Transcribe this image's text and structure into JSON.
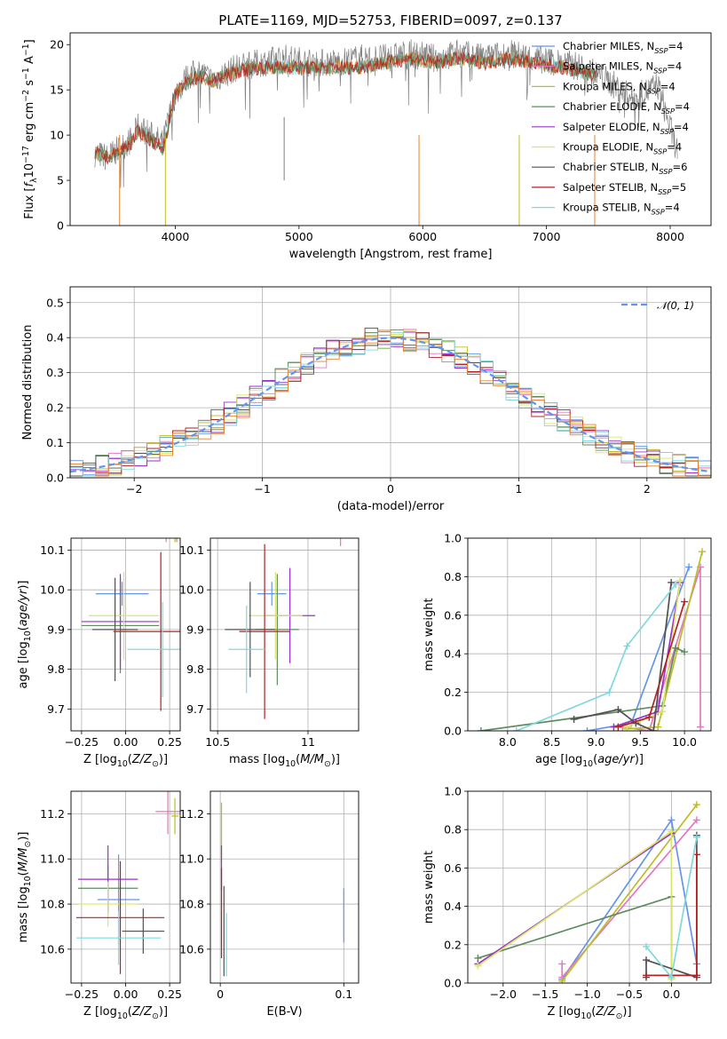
{
  "figure_title": "PLATE=1169, MJD=52753, FIBERID=0097, z=0.137",
  "colors": {
    "Chabrier MILES": "#6495ed",
    "Salpeter MILES": "#e377c2",
    "Kroupa MILES": "#bcbd22",
    "Chabrier ELODIE": "#5f8b5f",
    "Salpeter ELODIE": "#9932cc",
    "Kroupa ELODIE": "#dbe56a",
    "Chabrier STELIB": "#505050",
    "Salpeter STELIB": "#b22222",
    "Kroupa STELIB": "#80d8de",
    "data": "#808080",
    "orange": "#e8822a",
    "gaussian": "#6495ed"
  },
  "chart_data": [
    {
      "id": "spectrum",
      "type": "line",
      "xlabel": "wavelength [Angstrom, rest frame]",
      "ylabel": "Flux [f_λ10^-17 erg cm^-2 s^-1 A^-1]",
      "xlim": [
        3150,
        8330
      ],
      "ylim": [
        0,
        21.3
      ],
      "xticks": [
        4000,
        5000,
        6000,
        7000,
        8000
      ],
      "yticks": [
        0,
        5,
        10,
        15,
        20
      ],
      "grid": false,
      "legend_position": "right",
      "legend": [
        "Chabrier MILES, N_SSP=4",
        "Salpeter MILES, N_SSP=4",
        "Kroupa MILES, N_SSP=4",
        "Chabrier ELODIE, N_SSP=4",
        "Salpeter ELODIE, N_SSP=4",
        "Kroupa ELODIE, N_SSP=4",
        "Chabrier STELIB, N_SSP=6",
        "Salpeter STELIB, N_SSP=5",
        "Kroupa STELIB, N_SSP=4"
      ],
      "series": [
        {
          "name": "data",
          "x": [
            3350,
            3450,
            3550,
            3650,
            3700,
            3800,
            3900,
            3950,
            4000,
            4100,
            4200,
            4300,
            4500,
            4700,
            4900,
            5100,
            5300,
            5500,
            5700,
            5900,
            6100,
            6300,
            6500,
            6700,
            6900,
            7100,
            7300,
            7500,
            7700,
            7900,
            8050
          ],
          "y": [
            8.0,
            7.5,
            8.5,
            9.5,
            11.0,
            10.0,
            9.0,
            12.0,
            14.5,
            16.5,
            17.0,
            16.0,
            17.5,
            18.0,
            18.5,
            18.0,
            18.0,
            18.5,
            18.5,
            19.0,
            18.5,
            19.0,
            18.5,
            19.0,
            18.5,
            18.0,
            17.5,
            16.0,
            14.0,
            15.5,
            8.5
          ]
        },
        {
          "name": "model",
          "x": [
            3350,
            3450,
            3550,
            3650,
            3700,
            3800,
            3900,
            3950,
            4000,
            4100,
            4200,
            4300,
            4500,
            4700,
            4900,
            5100,
            5300,
            5500,
            5700,
            5900,
            6100,
            6300,
            6500,
            6700,
            6900,
            7100,
            7300,
            7400
          ],
          "y": [
            8.0,
            7.5,
            8.2,
            9.2,
            10.5,
            9.5,
            8.5,
            11.5,
            14.5,
            16.0,
            16.5,
            16.0,
            17.0,
            17.5,
            17.5,
            17.5,
            17.5,
            17.5,
            18.0,
            18.5,
            18.0,
            18.5,
            18.0,
            18.5,
            18.0,
            17.5,
            17.0,
            16.5
          ]
        }
      ]
    },
    {
      "id": "normed_distribution",
      "type": "line",
      "xlabel": "(data-model)/error",
      "ylabel": "Normed distribution",
      "xlim": [
        -2.5,
        2.5
      ],
      "ylim": [
        0,
        0.545
      ],
      "xticks": [
        -2,
        -1,
        0,
        1,
        2
      ],
      "yticks": [
        0.0,
        0.1,
        0.2,
        0.3,
        0.4,
        0.5
      ],
      "grid": true,
      "legend_position": "top-right",
      "legend": [
        "𝒩(0, 1)"
      ]
    },
    {
      "id": "age_vs_Z",
      "type": "scatter",
      "xlabel": "Z [log10(Z/Z⊙)]",
      "ylabel": "age  [log10(age/yr)]",
      "xlim": [
        -0.31,
        0.31
      ],
      "ylim": [
        9.645,
        10.13
      ],
      "xticks": [
        -0.25,
        0.0,
        0.25
      ],
      "yticks": [
        9.7,
        9.8,
        9.9,
        10.0,
        10.1
      ],
      "grid": true,
      "points": [
        {
          "series": "Chabrier MILES",
          "x": -0.02,
          "y": 9.99,
          "xerr": 0.15,
          "yerr": 0.03
        },
        {
          "series": "Salpeter MILES",
          "x": 0.23,
          "y": 10.14,
          "xerr": 0.07,
          "yerr": 0.02
        },
        {
          "series": "Kroupa MILES",
          "x": 0.28,
          "y": 10.15,
          "xerr": 0.01,
          "yerr": 0.03
        },
        {
          "series": "Chabrier ELODIE",
          "x": -0.03,
          "y": 9.91,
          "xerr": 0.22,
          "yerr": 0.12
        },
        {
          "series": "Salpeter ELODIE",
          "x": -0.03,
          "y": 9.92,
          "xerr": 0.22,
          "yerr": 0.12
        },
        {
          "series": "Kroupa ELODIE",
          "x": -0.01,
          "y": 9.935,
          "xerr": 0.2,
          "yerr": 0.11
        },
        {
          "series": "Chabrier STELIB",
          "x": -0.06,
          "y": 9.9,
          "xerr": 0.13,
          "yerr": 0.13
        },
        {
          "series": "Salpeter STELIB",
          "x": 0.2,
          "y": 9.895,
          "xerr": 0.27,
          "yerr": 0.2
        },
        {
          "series": "Kroupa STELIB",
          "x": 0.21,
          "y": 9.85,
          "xerr": 0.2,
          "yerr": 0.12
        },
        {
          "series": "orange",
          "x": 0.29,
          "y": 10.14,
          "xerr": 0.02,
          "yerr": 0.02
        }
      ]
    },
    {
      "id": "age_vs_mass",
      "type": "scatter",
      "xlabel": "mass [log10(M/M⊙)]",
      "ylabel": "",
      "xlim": [
        10.46,
        11.28
      ],
      "ylim": [
        9.645,
        10.13
      ],
      "xticks": [
        10.5,
        11.0
      ],
      "yticks": [
        9.7,
        9.8,
        9.9,
        10.0,
        10.1
      ],
      "grid": true,
      "points": [
        {
          "series": "Chabrier MILES",
          "x": 10.8,
          "y": 9.99,
          "xerr": 0.08,
          "yerr": 0.03
        },
        {
          "series": "Salpeter MILES",
          "x": 11.18,
          "y": 10.14,
          "xerr": 0.1,
          "yerr": 0.03
        },
        {
          "series": "Kroupa MILES",
          "x": 11.18,
          "y": 10.15,
          "xerr": 0.04,
          "yerr": 0.02
        },
        {
          "series": "Chabrier ELODIE",
          "x": 10.83,
          "y": 9.9,
          "xerr": 0.12,
          "yerr": 0.14
        },
        {
          "series": "Salpeter ELODIE",
          "x": 10.9,
          "y": 9.935,
          "xerr": 0.14,
          "yerr": 0.12
        },
        {
          "series": "Kroupa ELODIE",
          "x": 10.82,
          "y": 9.935,
          "xerr": 0.15,
          "yerr": 0.11
        },
        {
          "series": "Chabrier STELIB",
          "x": 10.68,
          "y": 9.9,
          "xerr": 0.14,
          "yerr": 0.12
        },
        {
          "series": "Salpeter STELIB",
          "x": 10.76,
          "y": 9.895,
          "xerr": 0.14,
          "yerr": 0.22
        },
        {
          "series": "Kroupa STELIB",
          "x": 10.66,
          "y": 9.85,
          "xerr": 0.1,
          "yerr": 0.11
        }
      ]
    },
    {
      "id": "mass_weight_vs_age",
      "type": "line",
      "xlabel": "age  [log10(age/yr)]",
      "ylabel": "mass weight",
      "xlim": [
        7.55,
        10.3
      ],
      "ylim": [
        0,
        1.0
      ],
      "xticks": [
        8.0,
        8.5,
        9.0,
        9.5,
        10.0
      ],
      "yticks": [
        0.0,
        0.2,
        0.4,
        0.6,
        0.8,
        1.0
      ],
      "grid": true,
      "series": [
        {
          "name": "Chabrier MILES",
          "x": [
            8.9,
            9.4,
            10.05
          ],
          "y": [
            0.0,
            0.04,
            0.85
          ]
        },
        {
          "name": "Salpeter MILES",
          "x": [
            9.3,
            9.6,
            10.18,
            10.18
          ],
          "y": [
            0.02,
            0.0,
            0.85,
            0.02
          ]
        },
        {
          "name": "Kroupa MILES",
          "x": [
            9.35,
            9.7,
            10.2
          ],
          "y": [
            0.01,
            0.02,
            0.93
          ]
        },
        {
          "name": "Chabrier ELODIE",
          "x": [
            7.7,
            9.75,
            9.9,
            10.0
          ],
          "y": [
            0.0,
            0.13,
            0.43,
            0.41
          ]
        },
        {
          "name": "Salpeter ELODIE",
          "x": [
            9.2,
            9.7,
            9.95
          ],
          "y": [
            0.02,
            0.1,
            0.77
          ]
        },
        {
          "name": "Kroupa ELODIE",
          "x": [
            9.35,
            9.75,
            9.95
          ],
          "y": [
            0.02,
            0.1,
            0.78
          ]
        },
        {
          "name": "Chabrier STELIB",
          "x": [
            8.75,
            9.25,
            9.45,
            9.65,
            9.85
          ],
          "y": [
            0.06,
            0.11,
            0.04,
            0.0,
            0.77
          ]
        },
        {
          "name": "Salpeter STELIB",
          "x": [
            9.25,
            9.6,
            10.0
          ],
          "y": [
            0.02,
            0.07,
            0.67
          ]
        },
        {
          "name": "Kroupa STELIB",
          "x": [
            8.1,
            9.15,
            9.35,
            9.9
          ],
          "y": [
            0.0,
            0.2,
            0.44,
            0.76
          ]
        }
      ]
    },
    {
      "id": "mass_vs_Z",
      "type": "scatter",
      "xlabel": "Z [log10(Z/Z⊙)]",
      "ylabel": "mass [log10(M/M⊙)]",
      "xlim": [
        -0.31,
        0.31
      ],
      "ylim": [
        10.45,
        11.3
      ],
      "xticks": [
        -0.25,
        0.0,
        0.25
      ],
      "yticks": [
        10.6,
        10.8,
        11.0,
        11.2
      ],
      "grid": true,
      "points": [
        {
          "series": "Chabrier MILES",
          "x": -0.04,
          "y": 10.82,
          "xerr": 0.12,
          "yerr": 0.2
        },
        {
          "series": "Salpeter MILES",
          "x": 0.24,
          "y": 11.21,
          "xerr": 0.07,
          "yerr": 0.1
        },
        {
          "series": "Kroupa MILES",
          "x": 0.28,
          "y": 11.19,
          "xerr": 0.02,
          "yerr": 0.08
        },
        {
          "series": "Chabrier ELODIE",
          "x": -0.1,
          "y": 10.87,
          "xerr": 0.17,
          "yerr": 0.1
        },
        {
          "series": "Salpeter ELODIE",
          "x": -0.1,
          "y": 10.91,
          "xerr": 0.17,
          "yerr": 0.15
        },
        {
          "series": "Kroupa ELODIE",
          "x": -0.1,
          "y": 10.8,
          "xerr": 0.17,
          "yerr": 0.1
        },
        {
          "series": "Chabrier STELIB",
          "x": 0.1,
          "y": 10.68,
          "xerr": 0.12,
          "yerr": 0.1
        },
        {
          "series": "Salpeter STELIB",
          "x": -0.03,
          "y": 10.74,
          "xerr": 0.25,
          "yerr": 0.25
        },
        {
          "series": "Kroupa STELIB",
          "x": -0.04,
          "y": 10.65,
          "xerr": 0.24,
          "yerr": 0.12
        }
      ]
    },
    {
      "id": "mass_vs_EBV",
      "type": "scatter",
      "xlabel": "E(B-V)",
      "ylabel": "",
      "xlim": [
        -0.008,
        0.112
      ],
      "ylim": [
        10.45,
        11.3
      ],
      "xticks": [
        0.0,
        0.1
      ],
      "yticks": [
        10.6,
        10.8,
        11.0,
        11.2
      ],
      "grid": true,
      "points": [
        {
          "series": "Kroupa MILES",
          "x": 0.001,
          "y": 11.12,
          "xerr": 0,
          "yerr": 0.13
        },
        {
          "series": "Salpeter ELODIE",
          "x": 0.001,
          "y": 10.96,
          "xerr": 0,
          "yerr": 0.1
        },
        {
          "series": "Salpeter STELIB",
          "x": 0.001,
          "y": 10.76,
          "xerr": 0,
          "yerr": 0.2
        },
        {
          "series": "Chabrier STELIB",
          "x": 0.003,
          "y": 10.68,
          "xerr": 0,
          "yerr": 0.2
        },
        {
          "series": "Kroupa STELIB",
          "x": 0.005,
          "y": 10.62,
          "xerr": 0,
          "yerr": 0.14
        },
        {
          "series": "Chabrier MILES",
          "x": 0.1,
          "y": 10.75,
          "xerr": 0,
          "yerr": 0.12
        }
      ]
    },
    {
      "id": "mass_weight_vs_Z",
      "type": "line",
      "xlabel": "Z [log10(Z/Z⊙)]",
      "ylabel": "mass weight",
      "xlim": [
        -2.42,
        0.47
      ],
      "ylim": [
        0,
        1.0
      ],
      "xticks": [
        -2.0,
        -1.5,
        -1.0,
        -0.5,
        0.0
      ],
      "yticks": [
        0.0,
        0.2,
        0.4,
        0.6,
        0.8,
        1.0
      ],
      "grid": true,
      "series": [
        {
          "name": "Chabrier MILES",
          "x": [
            -1.3,
            0.0,
            0.3
          ],
          "y": [
            0.02,
            0.85,
            0.1
          ]
        },
        {
          "name": "Salpeter MILES",
          "x": [
            -1.3,
            -1.3,
            0.3
          ],
          "y": [
            0.1,
            0.03,
            0.85
          ]
        },
        {
          "name": "Kroupa MILES",
          "x": [
            -1.3,
            0.3
          ],
          "y": [
            0.01,
            0.93
          ]
        },
        {
          "name": "Chabrier ELODIE",
          "x": [
            -2.3,
            0.0,
            0.0
          ],
          "y": [
            0.13,
            0.45,
            0.03
          ]
        },
        {
          "name": "Salpeter ELODIE",
          "x": [
            -2.3,
            0.0
          ],
          "y": [
            0.1,
            0.78
          ]
        },
        {
          "name": "Kroupa ELODIE",
          "x": [
            -2.3,
            0.0,
            0.0
          ],
          "y": [
            0.09,
            0.79,
            0.02
          ]
        },
        {
          "name": "Chabrier STELIB",
          "x": [
            -0.3,
            -0.3,
            0.3,
            0.3
          ],
          "y": [
            0.03,
            0.12,
            0.03,
            0.77
          ]
        },
        {
          "name": "Salpeter STELIB",
          "x": [
            -0.3,
            0.3,
            0.3
          ],
          "y": [
            0.04,
            0.04,
            0.67
          ]
        },
        {
          "name": "Kroupa STELIB",
          "x": [
            -0.3,
            0.0,
            0.3
          ],
          "y": [
            0.19,
            0.03,
            0.76
          ]
        }
      ]
    }
  ]
}
